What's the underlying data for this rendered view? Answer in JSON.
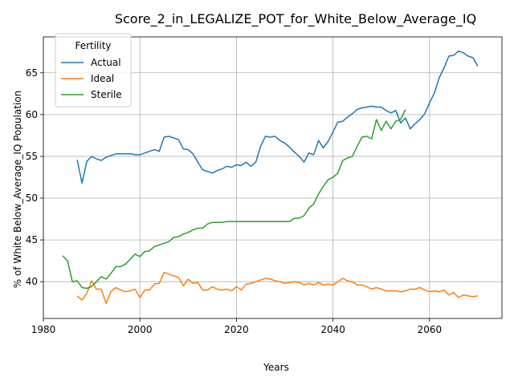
{
  "chart_data": {
    "type": "line",
    "title": "Score_2_in_LEGALIZE_POT_for_White_Below_Average_IQ",
    "xlabel": "Years",
    "ylabel": "% of White Below_Average_IQ Population",
    "xlim": [
      1980,
      2075
    ],
    "ylim": [
      35.6,
      69.3
    ],
    "xticks": [
      1980,
      2000,
      2020,
      2040,
      2060
    ],
    "yticks": [
      40,
      45,
      50,
      55,
      60,
      65
    ],
    "grid": true,
    "legend": {
      "title": "Fertility",
      "placement": "top-left"
    },
    "series": [
      {
        "name": "Actual",
        "color": "#1f77b4",
        "x": [
          1987,
          1988,
          1989,
          1990,
          1991,
          1992,
          1993,
          1994,
          1995,
          1996,
          1997,
          1998,
          1999,
          2000,
          2001,
          2002,
          2003,
          2004,
          2005,
          2006,
          2007,
          2008,
          2009,
          2010,
          2011,
          2012,
          2013,
          2014,
          2015,
          2016,
          2017,
          2018,
          2019,
          2020,
          2021,
          2022,
          2023,
          2024,
          2025,
          2026,
          2027,
          2028,
          2029,
          2030,
          2031,
          2032,
          2033,
          2034,
          2035,
          2036,
          2037,
          2038,
          2039,
          2040,
          2041,
          2042,
          2043,
          2044,
          2045,
          2046,
          2047,
          2048,
          2049,
          2050,
          2051,
          2052,
          2053,
          2054,
          2055,
          2056,
          2057,
          2058,
          2059,
          2060,
          2061,
          2062,
          2063,
          2064,
          2065,
          2066,
          2067,
          2068,
          2069,
          2070
        ],
        "y": [
          54.6,
          51.8,
          54.4,
          55.0,
          54.7,
          54.5,
          54.9,
          55.1,
          55.3,
          55.3,
          55.3,
          55.3,
          55.2,
          55.2,
          55.4,
          55.6,
          55.8,
          55.6,
          57.3,
          57.4,
          57.2,
          57.0,
          55.9,
          55.8,
          55.3,
          54.3,
          53.4,
          53.2,
          53.0,
          53.3,
          53.5,
          53.8,
          53.7,
          54.0,
          53.9,
          54.3,
          53.8,
          54.3,
          56.2,
          57.4,
          57.3,
          57.4,
          56.9,
          56.6,
          56.1,
          55.5,
          55.0,
          54.3,
          55.4,
          55.2,
          56.9,
          56.0,
          56.8,
          57.9,
          59.1,
          59.2,
          59.7,
          60.1,
          60.6,
          60.8,
          60.9,
          61.0,
          60.9,
          60.9,
          60.5,
          60.2,
          60.5,
          59.0,
          59.6,
          58.3,
          58.9,
          59.4,
          60.1,
          61.4,
          62.6,
          64.4,
          65.6,
          67.0,
          67.1,
          67.6,
          67.4,
          67.0,
          66.8,
          65.8
        ]
      },
      {
        "name": "Ideal",
        "color": "#ff7f0e",
        "x": [
          1987,
          1988,
          1989,
          1990,
          1991,
          1992,
          1993,
          1994,
          1995,
          1996,
          1997,
          1998,
          1999,
          2000,
          2001,
          2002,
          2003,
          2004,
          2005,
          2006,
          2007,
          2008,
          2009,
          2010,
          2011,
          2012,
          2013,
          2014,
          2015,
          2016,
          2017,
          2018,
          2019,
          2020,
          2021,
          2022,
          2023,
          2024,
          2025,
          2026,
          2027,
          2028,
          2029,
          2030,
          2031,
          2032,
          2033,
          2034,
          2035,
          2036,
          2037,
          2038,
          2039,
          2040,
          2041,
          2042,
          2043,
          2044,
          2045,
          2046,
          2047,
          2048,
          2049,
          2050,
          2051,
          2052,
          2053,
          2054,
          2055,
          2056,
          2057,
          2058,
          2059,
          2060,
          2061,
          2062,
          2063,
          2064,
          2065,
          2066,
          2067,
          2068,
          2069,
          2070
        ],
        "y": [
          38.3,
          37.8,
          38.6,
          40.1,
          39.1,
          39.1,
          37.4,
          38.8,
          39.3,
          39.0,
          38.8,
          38.9,
          39.1,
          38.1,
          39.0,
          39.0,
          39.7,
          39.8,
          41.1,
          40.9,
          40.7,
          40.5,
          39.5,
          40.3,
          39.8,
          39.9,
          39.0,
          39.0,
          39.4,
          39.1,
          39.0,
          39.1,
          38.9,
          39.4,
          39.0,
          39.7,
          39.8,
          40.0,
          40.2,
          40.4,
          40.3,
          40.1,
          40.0,
          39.8,
          39.9,
          40.0,
          39.9,
          39.6,
          39.8,
          39.6,
          39.9,
          39.6,
          39.7,
          39.6,
          40.0,
          40.4,
          40.1,
          40.0,
          39.6,
          39.6,
          39.4,
          39.1,
          39.3,
          39.1,
          38.9,
          38.9,
          38.9,
          38.8,
          38.9,
          39.1,
          39.1,
          39.3,
          39.0,
          38.8,
          38.9,
          38.8,
          39.0,
          38.4,
          38.7,
          38.1,
          38.4,
          38.3,
          38.2,
          38.3
        ]
      },
      {
        "name": "Sterile",
        "color": "#2ca02c",
        "x": [
          1984,
          1985,
          1986,
          1987,
          1988,
          1989,
          1990,
          1991,
          1992,
          1993,
          1994,
          1995,
          1996,
          1997,
          1998,
          1999,
          2000,
          2001,
          2002,
          2003,
          2004,
          2005,
          2006,
          2007,
          2008,
          2009,
          2010,
          2011,
          2012,
          2013,
          2014,
          2015,
          2016,
          2017,
          2018,
          2019,
          2020,
          2021,
          2022,
          2023,
          2024,
          2025,
          2026,
          2027,
          2028,
          2029,
          2030,
          2031,
          2032,
          2033,
          2034,
          2035,
          2036,
          2037,
          2038,
          2039,
          2040,
          2041,
          2042,
          2043,
          2044,
          2045,
          2046,
          2047,
          2048,
          2049,
          2050,
          2051,
          2052,
          2053,
          2054,
          2055
        ],
        "y": [
          43.1,
          42.5,
          40.0,
          40.1,
          39.3,
          39.2,
          39.4,
          40.0,
          40.6,
          40.3,
          41.0,
          41.8,
          41.8,
          42.1,
          42.7,
          43.3,
          43.0,
          43.6,
          43.7,
          44.2,
          44.4,
          44.6,
          44.8,
          45.3,
          45.4,
          45.7,
          45.9,
          46.2,
          46.4,
          46.4,
          46.9,
          47.1,
          47.1,
          47.1,
          47.2,
          47.2,
          47.2,
          47.2,
          47.2,
          47.2,
          47.2,
          47.2,
          47.2,
          47.2,
          47.2,
          47.2,
          47.2,
          47.2,
          47.6,
          47.6,
          47.9,
          48.8,
          49.3,
          50.5,
          51.4,
          52.2,
          52.5,
          53.0,
          54.5,
          54.8,
          55.0,
          56.2,
          57.3,
          57.4,
          57.1,
          59.4,
          58.1,
          59.2,
          58.3,
          59.2,
          59.4,
          60.6
        ]
      }
    ]
  }
}
